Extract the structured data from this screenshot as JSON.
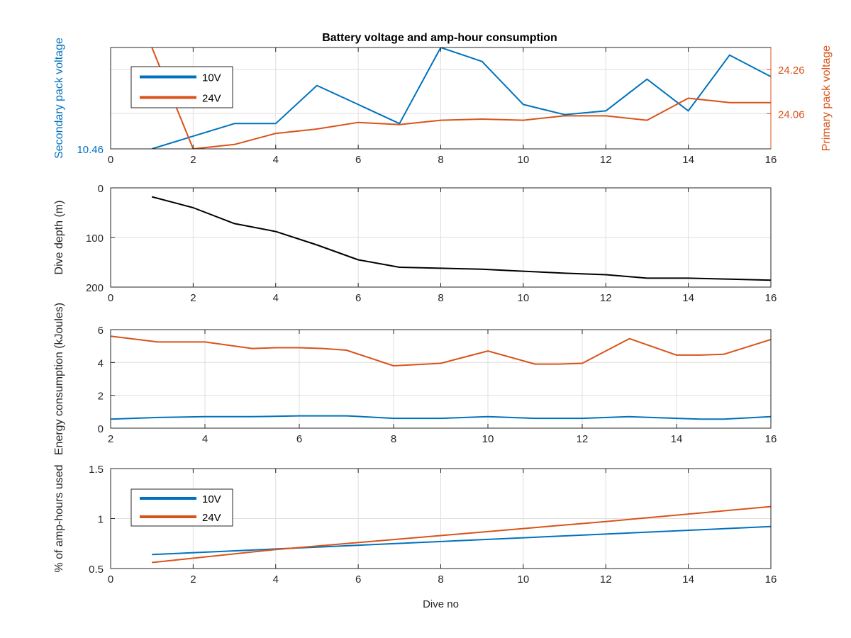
{
  "colors": {
    "blue": "#0072bd",
    "orange": "#d95319",
    "black": "#000000",
    "axis": "#262626",
    "grid": "#dfdfdf"
  },
  "chart_data": [
    {
      "type": "line",
      "title": "Battery voltage and amp-hour consumption",
      "xlim": [
        0,
        16
      ],
      "xticks": [
        0,
        2,
        4,
        6,
        8,
        10,
        12,
        14,
        16
      ],
      "ylabel": "Secondary pack voltage",
      "ylabel_right": "Primary pack voltage",
      "ylim": [
        10.46,
        10.54
      ],
      "yticks": [
        10.46
      ],
      "ylim_right": [
        23.9,
        24.36
      ],
      "yticks_right": [
        24.06,
        24.26
      ],
      "legend": {
        "position": "top-left",
        "entries": [
          "10V",
          "24V"
        ]
      },
      "grid": true,
      "series": [
        {
          "name": "10V",
          "axis": "left",
          "color": "blue",
          "x": [
            1,
            2,
            3,
            4,
            5,
            6,
            7,
            8,
            9,
            10,
            11,
            12,
            13,
            14,
            15,
            16
          ],
          "y": [
            10.46,
            10.47,
            10.48,
            10.48,
            10.51,
            10.495,
            10.48,
            10.54,
            10.529,
            10.495,
            10.487,
            10.49,
            10.515,
            10.49,
            10.534,
            10.517
          ]
        },
        {
          "name": "24V",
          "axis": "right",
          "color": "orange",
          "x": [
            1,
            2,
            3,
            4,
            5,
            6,
            7,
            8,
            9,
            10,
            11,
            12,
            13,
            14,
            15,
            16
          ],
          "y": [
            24.36,
            23.9,
            23.92,
            23.97,
            23.99,
            24.02,
            24.01,
            24.03,
            24.035,
            24.03,
            24.05,
            24.05,
            24.03,
            24.13,
            24.11,
            24.11
          ]
        }
      ]
    },
    {
      "type": "line",
      "xlim": [
        0,
        16
      ],
      "xticks": [
        0,
        2,
        4,
        6,
        8,
        10,
        12,
        14,
        16
      ],
      "ylabel": "Dive depth (m)",
      "ylim": [
        0,
        200
      ],
      "y_reversed": true,
      "yticks": [
        0,
        100,
        200
      ],
      "grid": true,
      "series": [
        {
          "color": "black",
          "x": [
            1,
            2,
            3,
            4,
            5,
            6,
            7,
            8,
            9,
            10,
            11,
            12,
            13,
            14,
            15,
            16
          ],
          "y": [
            18,
            40,
            72,
            88,
            115,
            145,
            160,
            162,
            164,
            168,
            172,
            175,
            182,
            182,
            184,
            186
          ]
        }
      ]
    },
    {
      "type": "line",
      "xlim": [
        2,
        16
      ],
      "xticks": [
        2,
        4,
        6,
        8,
        10,
        12,
        14,
        16
      ],
      "ylabel": "Energy consumption (kJoules)",
      "ylim": [
        0,
        6
      ],
      "yticks": [
        0,
        2,
        4,
        6
      ],
      "grid": true,
      "series": [
        {
          "color": "orange",
          "x": [
            2,
            3,
            4,
            5,
            5.5,
            6,
            6.5,
            7,
            8,
            9,
            10,
            11,
            11.5,
            12,
            13,
            14,
            14.5,
            15,
            16
          ],
          "y": [
            5.6,
            5.25,
            5.25,
            4.85,
            4.9,
            4.9,
            4.85,
            4.75,
            3.8,
            3.95,
            4.7,
            3.9,
            3.9,
            3.95,
            5.45,
            4.45,
            4.45,
            4.5,
            5.4
          ]
        },
        {
          "color": "blue",
          "x": [
            2,
            3,
            4,
            5,
            6,
            7,
            8,
            9,
            10,
            11,
            12,
            13,
            14,
            14.5,
            15,
            16
          ],
          "y": [
            0.55,
            0.65,
            0.7,
            0.7,
            0.75,
            0.75,
            0.6,
            0.6,
            0.7,
            0.6,
            0.6,
            0.7,
            0.6,
            0.55,
            0.55,
            0.7
          ]
        }
      ]
    },
    {
      "type": "line",
      "xlim": [
        0,
        16
      ],
      "xticks": [
        0,
        2,
        4,
        6,
        8,
        10,
        12,
        14,
        16
      ],
      "xlabel": "Dive no",
      "ylabel": "% of amp-hours used",
      "ylim": [
        0.5,
        1.5
      ],
      "yticks": [
        0.5,
        1,
        1.5
      ],
      "legend": {
        "position": "bottom-left",
        "entries": [
          "10V",
          "24V"
        ]
      },
      "grid": true,
      "series": [
        {
          "name": "10V",
          "color": "blue",
          "x": [
            1,
            16
          ],
          "y": [
            0.64,
            0.92
          ]
        },
        {
          "name": "24V",
          "color": "orange",
          "x": [
            1,
            4,
            8,
            12,
            16
          ],
          "y": [
            0.56,
            0.69,
            0.83,
            0.97,
            1.12
          ]
        }
      ]
    }
  ]
}
